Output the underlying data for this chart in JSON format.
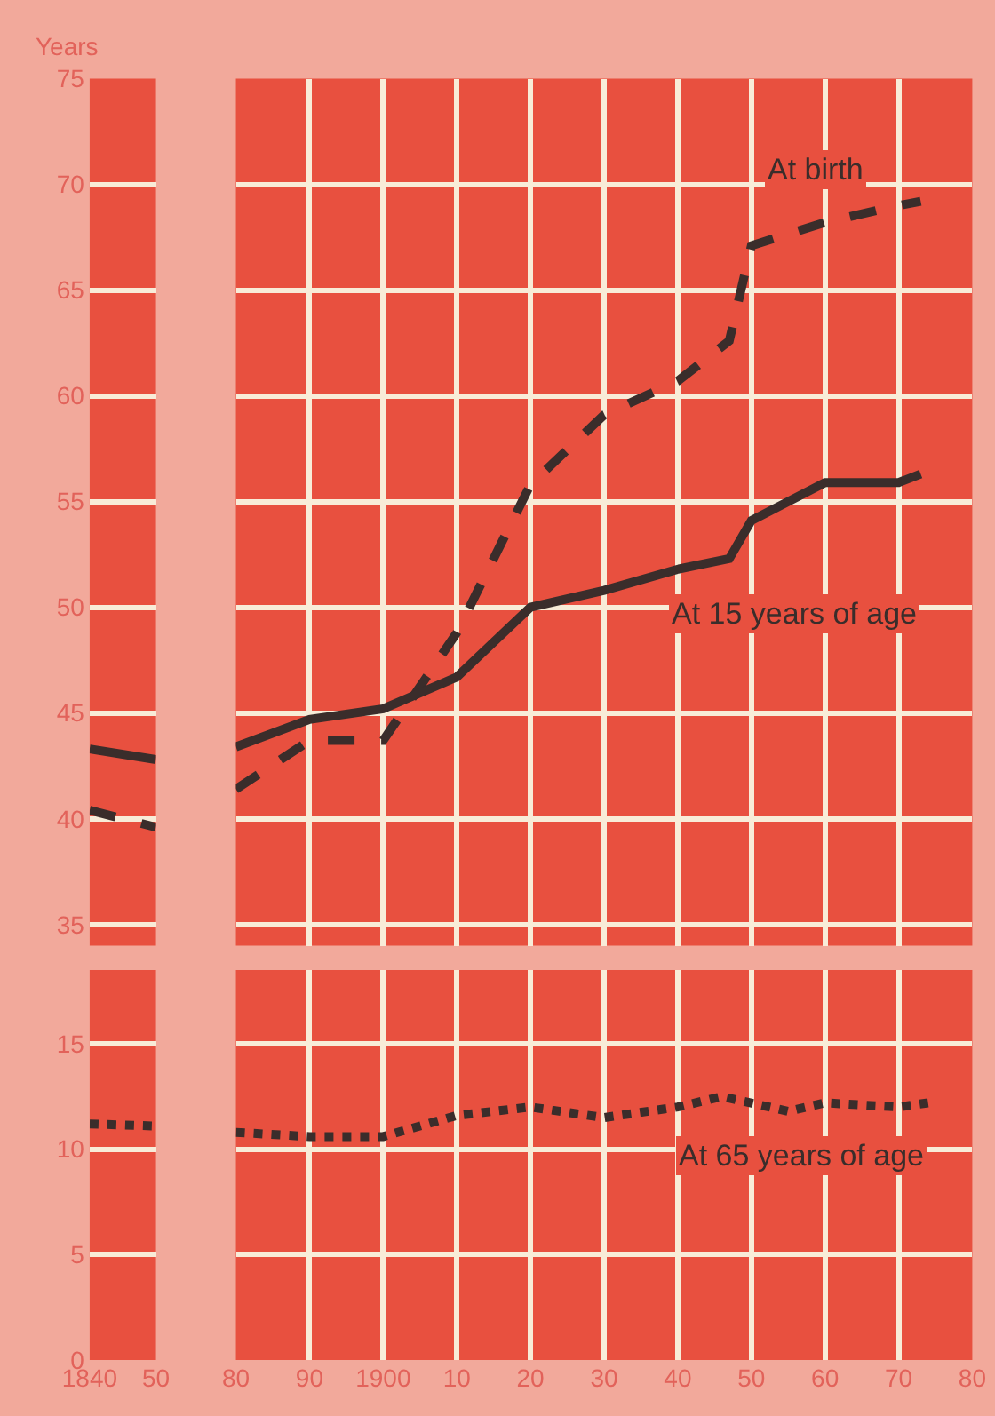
{
  "chart_data": [
    {
      "type": "line",
      "ylabel": "Years",
      "x": [
        1840,
        1850
      ],
      "xlim": [
        1840,
        1850
      ],
      "xticks": [
        1840,
        1850
      ],
      "ylim": [
        34,
        75
      ],
      "yticks": [
        35,
        40,
        45,
        50,
        55,
        60,
        65,
        70,
        75
      ],
      "tick_labels": "y",
      "grid": true,
      "series": [
        {
          "color": "#3a2d2b",
          "line_style": "dashed",
          "values": [
            40.4,
            39.6
          ]
        },
        {
          "color": "#3a2d2b",
          "line_style": "solid",
          "values": [
            43.3,
            42.8
          ]
        }
      ]
    },
    {
      "type": "line",
      "x": [
        1880,
        1890,
        1900,
        1910,
        1920,
        1930,
        1940,
        1947,
        1950,
        1960,
        1970,
        1973
      ],
      "xlim": [
        1880,
        1980
      ],
      "xticks": [
        1880,
        1890,
        1900,
        1910,
        1920,
        1930,
        1940,
        1950,
        1960,
        1970,
        1980
      ],
      "ylim": [
        34,
        75
      ],
      "yticks": [
        35,
        40,
        45,
        50,
        55,
        60,
        65,
        70,
        75
      ],
      "tick_labels": false,
      "grid": true,
      "series": [
        {
          "name": "At birth",
          "color": "#3a2d2b",
          "line_style": "dashed",
          "values": [
            41.4,
            43.7,
            43.7,
            48.8,
            55.8,
            59.1,
            60.7,
            62.6,
            67.1,
            68.2,
            69.0,
            69.2
          ]
        },
        {
          "name": "At 15 years of age",
          "color": "#3a2d2b",
          "line_style": "solid",
          "values": [
            43.4,
            44.7,
            45.2,
            46.7,
            50.0,
            50.8,
            51.8,
            52.3,
            54.1,
            55.9,
            55.9,
            56.3
          ]
        }
      ]
    },
    {
      "type": "line",
      "x": [
        1840,
        1850
      ],
      "xlim": [
        1840,
        1850
      ],
      "xticks": [
        1840,
        {
          "value": 1850,
          "label": "50"
        }
      ],
      "ylim": [
        0,
        18.5
      ],
      "yticks": [
        0,
        5,
        10,
        15
      ],
      "grid": true,
      "series": [
        {
          "color": "#3a2d2b",
          "line_style": "dotted",
          "values": [
            11.2,
            11.1
          ]
        }
      ]
    },
    {
      "type": "line",
      "x": [
        1880,
        1890,
        1900,
        1910,
        1920,
        1930,
        1940,
        1946,
        1955,
        1960,
        1970,
        1974
      ],
      "xlim": [
        1880,
        1980
      ],
      "xticks": [
        {
          "value": 1880,
          "label": "80"
        },
        {
          "value": 1890,
          "label": "90"
        },
        1900,
        {
          "value": 1910,
          "label": "10"
        },
        {
          "value": 1920,
          "label": "20"
        },
        {
          "value": 1930,
          "label": "30"
        },
        {
          "value": 1940,
          "label": "40"
        },
        {
          "value": 1950,
          "label": "50"
        },
        {
          "value": 1960,
          "label": "60"
        },
        {
          "value": 1970,
          "label": "70"
        },
        {
          "value": 1980,
          "label": "80"
        }
      ],
      "ylim": [
        0,
        18.5
      ],
      "yticks": [
        0,
        5,
        10,
        15
      ],
      "tick_labels": "x",
      "grid": true,
      "series": [
        {
          "name": "At 65 years of age",
          "color": "#3a2d2b",
          "line_style": "dotted",
          "values": [
            10.8,
            10.6,
            10.6,
            11.6,
            12.0,
            11.5,
            12.0,
            12.5,
            11.8,
            12.2,
            12.0,
            12.2
          ]
        }
      ]
    }
  ]
}
